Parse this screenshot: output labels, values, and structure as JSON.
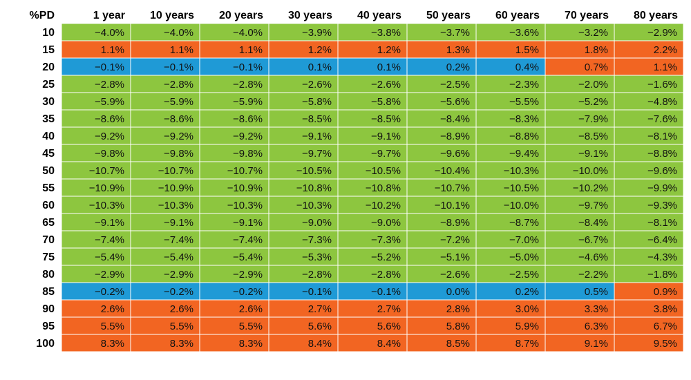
{
  "chart_data": {
    "type": "heatmap",
    "corner_label": "%PD",
    "columns": [
      "1 year",
      "10 years",
      "20 years",
      "30 years",
      "40 years",
      "50 years",
      "60 years",
      "70 years",
      "80 years"
    ],
    "rows": [
      "10",
      "15",
      "20",
      "25",
      "30",
      "35",
      "40",
      "45",
      "50",
      "55",
      "60",
      "65",
      "70",
      "75",
      "80",
      "85",
      "90",
      "95",
      "100"
    ],
    "values": [
      [
        "-4.0%",
        "-4.0%",
        "-4.0%",
        "-3.9%",
        "-3.8%",
        "-3.7%",
        "-3.6%",
        "-3.2%",
        "-2.9%"
      ],
      [
        "1.1%",
        "1.1%",
        "1.1%",
        "1.2%",
        "1.2%",
        "1.3%",
        "1.5%",
        "1.8%",
        "2.2%"
      ],
      [
        "-0.1%",
        "-0.1%",
        "-0.1%",
        "0.1%",
        "0.1%",
        "0.2%",
        "0.4%",
        "0.7%",
        "1.1%"
      ],
      [
        "-2.8%",
        "-2.8%",
        "-2.8%",
        "-2.6%",
        "-2.6%",
        "-2.5%",
        "-2.3%",
        "-2.0%",
        "-1.6%"
      ],
      [
        "-5.9%",
        "-5.9%",
        "-5.9%",
        "-5.8%",
        "-5.8%",
        "-5.6%",
        "-5.5%",
        "-5.2%",
        "-4.8%"
      ],
      [
        "-8.6%",
        "-8.6%",
        "-8.6%",
        "-8.5%",
        "-8.5%",
        "-8.4%",
        "-8.3%",
        "-7.9%",
        "-7.6%"
      ],
      [
        "-9.2%",
        "-9.2%",
        "-9.2%",
        "-9.1%",
        "-9.1%",
        "-8.9%",
        "-8.8%",
        "-8.5%",
        "-8.1%"
      ],
      [
        "-9.8%",
        "-9.8%",
        "-9.8%",
        "-9.7%",
        "-9.7%",
        "-9.6%",
        "-9.4%",
        "-9.1%",
        "-8.8%"
      ],
      [
        "-10.7%",
        "-10.7%",
        "-10.7%",
        "-10.5%",
        "-10.5%",
        "-10.4%",
        "-10.3%",
        "-10.0%",
        "-9.6%"
      ],
      [
        "-10.9%",
        "-10.9%",
        "-10.9%",
        "-10.8%",
        "-10.8%",
        "-10.7%",
        "-10.5%",
        "-10.2%",
        "-9.9%"
      ],
      [
        "-10.3%",
        "-10.3%",
        "-10.3%",
        "-10.3%",
        "-10.2%",
        "-10.1%",
        "-10.0%",
        "-9.7%",
        "-9.3%"
      ],
      [
        "-9.1%",
        "-9.1%",
        "-9.1%",
        "-9.0%",
        "-9.0%",
        "-8.9%",
        "-8.7%",
        "-8.4%",
        "-8.1%"
      ],
      [
        "-7.4%",
        "-7.4%",
        "-7.4%",
        "-7.3%",
        "-7.3%",
        "-7.2%",
        "-7.0%",
        "-6.7%",
        "-6.4%"
      ],
      [
        "-5.4%",
        "-5.4%",
        "-5.4%",
        "-5.3%",
        "-5.2%",
        "-5.1%",
        "-5.0%",
        "-4.6%",
        "-4.3%"
      ],
      [
        "-2.9%",
        "-2.9%",
        "-2.9%",
        "-2.8%",
        "-2.8%",
        "-2.6%",
        "-2.5%",
        "-2.2%",
        "-1.8%"
      ],
      [
        "-0.2%",
        "-0.2%",
        "-0.2%",
        "-0.1%",
        "-0.1%",
        "0.0%",
        "0.2%",
        "0.5%",
        "0.9%"
      ],
      [
        "2.6%",
        "2.6%",
        "2.6%",
        "2.7%",
        "2.7%",
        "2.8%",
        "3.0%",
        "3.3%",
        "3.8%"
      ],
      [
        "5.5%",
        "5.5%",
        "5.5%",
        "5.6%",
        "5.6%",
        "5.8%",
        "5.9%",
        "6.3%",
        "6.7%"
      ],
      [
        "8.3%",
        "8.3%",
        "8.3%",
        "8.4%",
        "8.4%",
        "8.5%",
        "8.7%",
        "9.1%",
        "9.5%"
      ]
    ],
    "colors": {
      "negative": "#8dc63f",
      "near_zero": "#1f9ad6",
      "positive": "#f26522",
      "grid": "#ffffff"
    },
    "color_rule": "values below -1% green, between -1% and 0.5% blue, above 0.5% orange"
  }
}
